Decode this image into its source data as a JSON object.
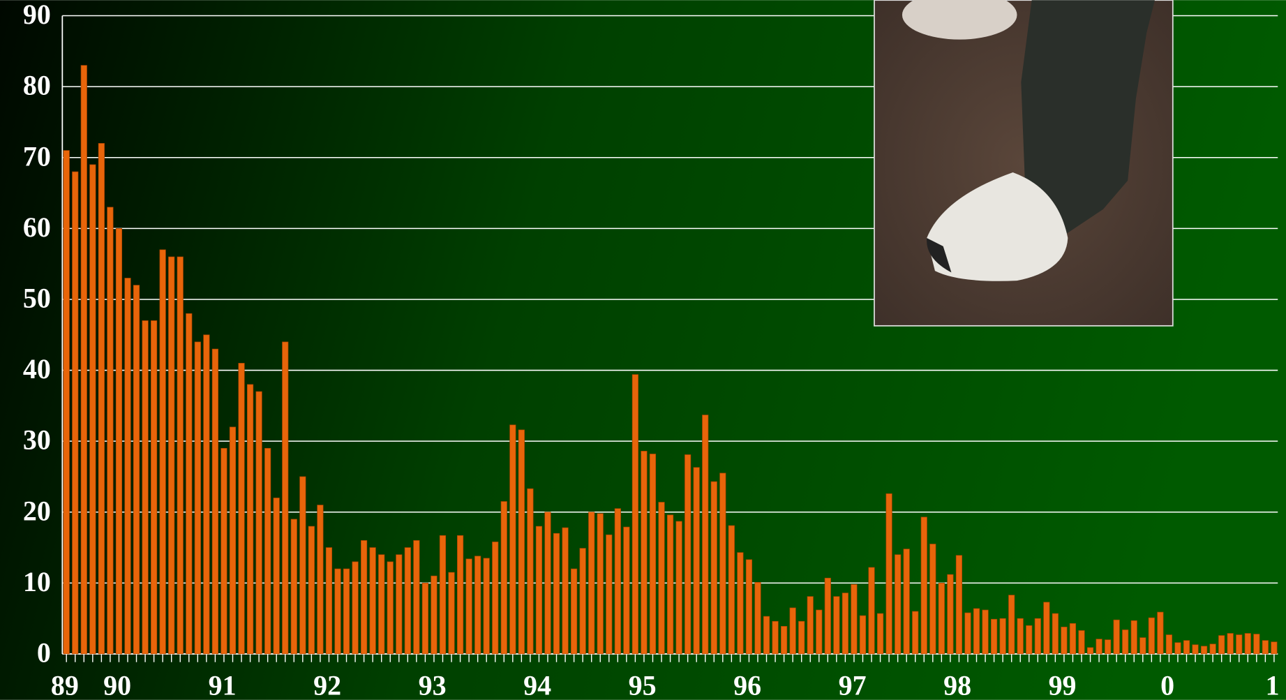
{
  "chart_data": {
    "type": "bar",
    "categories": [
      "89",
      null,
      null,
      null,
      null,
      null,
      "90",
      null,
      null,
      null,
      null,
      null,
      null,
      null,
      null,
      null,
      null,
      null,
      "91",
      null,
      null,
      null,
      null,
      null,
      null,
      null,
      null,
      null,
      null,
      null,
      "92",
      null,
      null,
      null,
      null,
      null,
      null,
      null,
      null,
      null,
      null,
      null,
      "93",
      null,
      null,
      null,
      null,
      null,
      null,
      null,
      null,
      null,
      null,
      null,
      "94",
      null,
      null,
      null,
      null,
      null,
      null,
      null,
      null,
      null,
      null,
      null,
      "95",
      null,
      null,
      null,
      null,
      null,
      null,
      null,
      null,
      null,
      null,
      null,
      "96",
      null,
      null,
      null,
      null,
      null,
      null,
      null,
      null,
      null,
      null,
      null,
      "97",
      null,
      null,
      null,
      null,
      null,
      null,
      null,
      null,
      null,
      null,
      null,
      "98",
      null,
      null,
      null,
      null,
      null,
      null,
      null,
      null,
      null,
      null,
      null,
      "99",
      null,
      null,
      null,
      null,
      null,
      null,
      null,
      null,
      null,
      null,
      null,
      "0",
      null,
      null,
      null,
      null,
      null,
      null,
      null,
      null,
      null,
      null,
      null,
      "1"
    ],
    "values": [
      71,
      68,
      83,
      69,
      72,
      63,
      60,
      53,
      52,
      47,
      47,
      57,
      56,
      56,
      48,
      44,
      45,
      43,
      29,
      32,
      41,
      38,
      37,
      29,
      22,
      44,
      19,
      25,
      18,
      21,
      15,
      12,
      12,
      13,
      16,
      15,
      14,
      13,
      14,
      15,
      16,
      10,
      11,
      16.7,
      11.5,
      16.7,
      13.4,
      13.8,
      13.5,
      15.8,
      21.5,
      32.3,
      31.6,
      23.3,
      18,
      20,
      17,
      17.8,
      12,
      14.9,
      20,
      19.8,
      16.8,
      20.5,
      17.9,
      39.4,
      28.6,
      28.2,
      21.4,
      19.6,
      18.7,
      28.1,
      26.3,
      33.7,
      24.3,
      25.5,
      18.1,
      14.3,
      13.3,
      10.1,
      5.3,
      4.6,
      3.9,
      6.5,
      4.6,
      8.1,
      6.2,
      10.7,
      8.1,
      8.6,
      9.8,
      5.4,
      12.2,
      5.7,
      22.6,
      14,
      14.8,
      6,
      19.3,
      15.5,
      10,
      11.2,
      13.9,
      5.8,
      6.4,
      6.2,
      4.9,
      5,
      8.3,
      5,
      4,
      5,
      7.3,
      5.7,
      3.8,
      4.3,
      3.3,
      0.9,
      2.1,
      2,
      4.8,
      3.4,
      4.7,
      2.3,
      5.1,
      5.9,
      2.7,
      1.6,
      1.9,
      1.3,
      1.1,
      1.4,
      2.6,
      2.9,
      2.7,
      2.9,
      2.8,
      1.9,
      1.7
    ],
    "color": "#e8650a",
    "ylim": [
      0,
      90
    ],
    "yticks": [
      0,
      10,
      20,
      30,
      40,
      50,
      60,
      70,
      80,
      90
    ],
    "grid": true
  }
}
